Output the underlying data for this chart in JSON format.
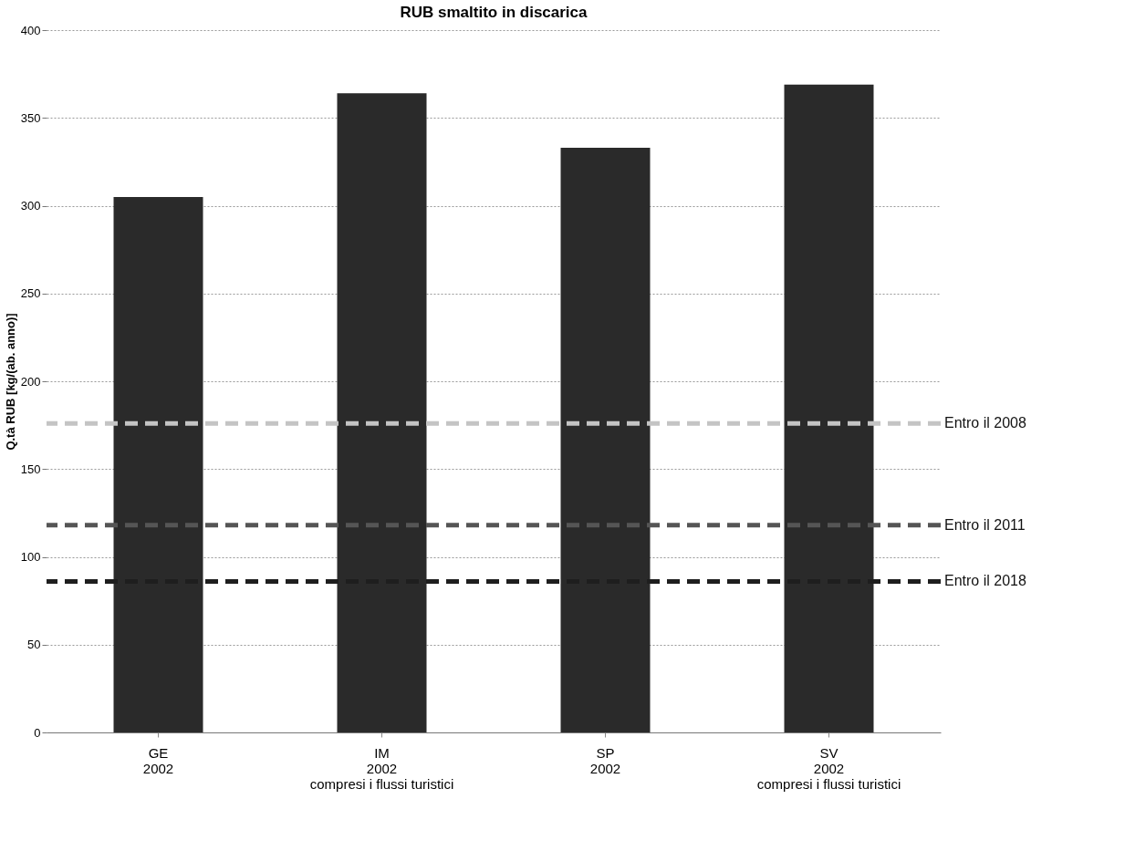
{
  "chart_data": {
    "type": "bar",
    "title": "RUB smaltito in discarica",
    "ylabel": "Q.tà RUB [kg/(ab. anno)]",
    "categories": [
      "GE\n2002",
      "IM\n2002\ncompresi i flussi turistici",
      "SP\n2002",
      "SV\n2002\ncompresi i flussi turistici"
    ],
    "values": [
      305,
      364,
      333,
      369
    ],
    "color": "#2a2a2a",
    "ylim": [
      0,
      400
    ],
    "yticks": [
      0,
      50,
      100,
      150,
      200,
      250,
      300,
      350,
      400
    ],
    "grid": "y",
    "ref_lines": [
      {
        "axis": "y",
        "value": 176,
        "label": "Entro il 2008",
        "color": "#c4c4c4",
        "line_style": "dashed"
      },
      {
        "axis": "y",
        "value": 118,
        "label": "Entro il 2011",
        "color": "#555555",
        "line_style": "dashed"
      },
      {
        "axis": "y",
        "value": 86,
        "label": "Entro il 2018",
        "color": "#1e1e1e",
        "line_style": "dashed"
      }
    ]
  }
}
